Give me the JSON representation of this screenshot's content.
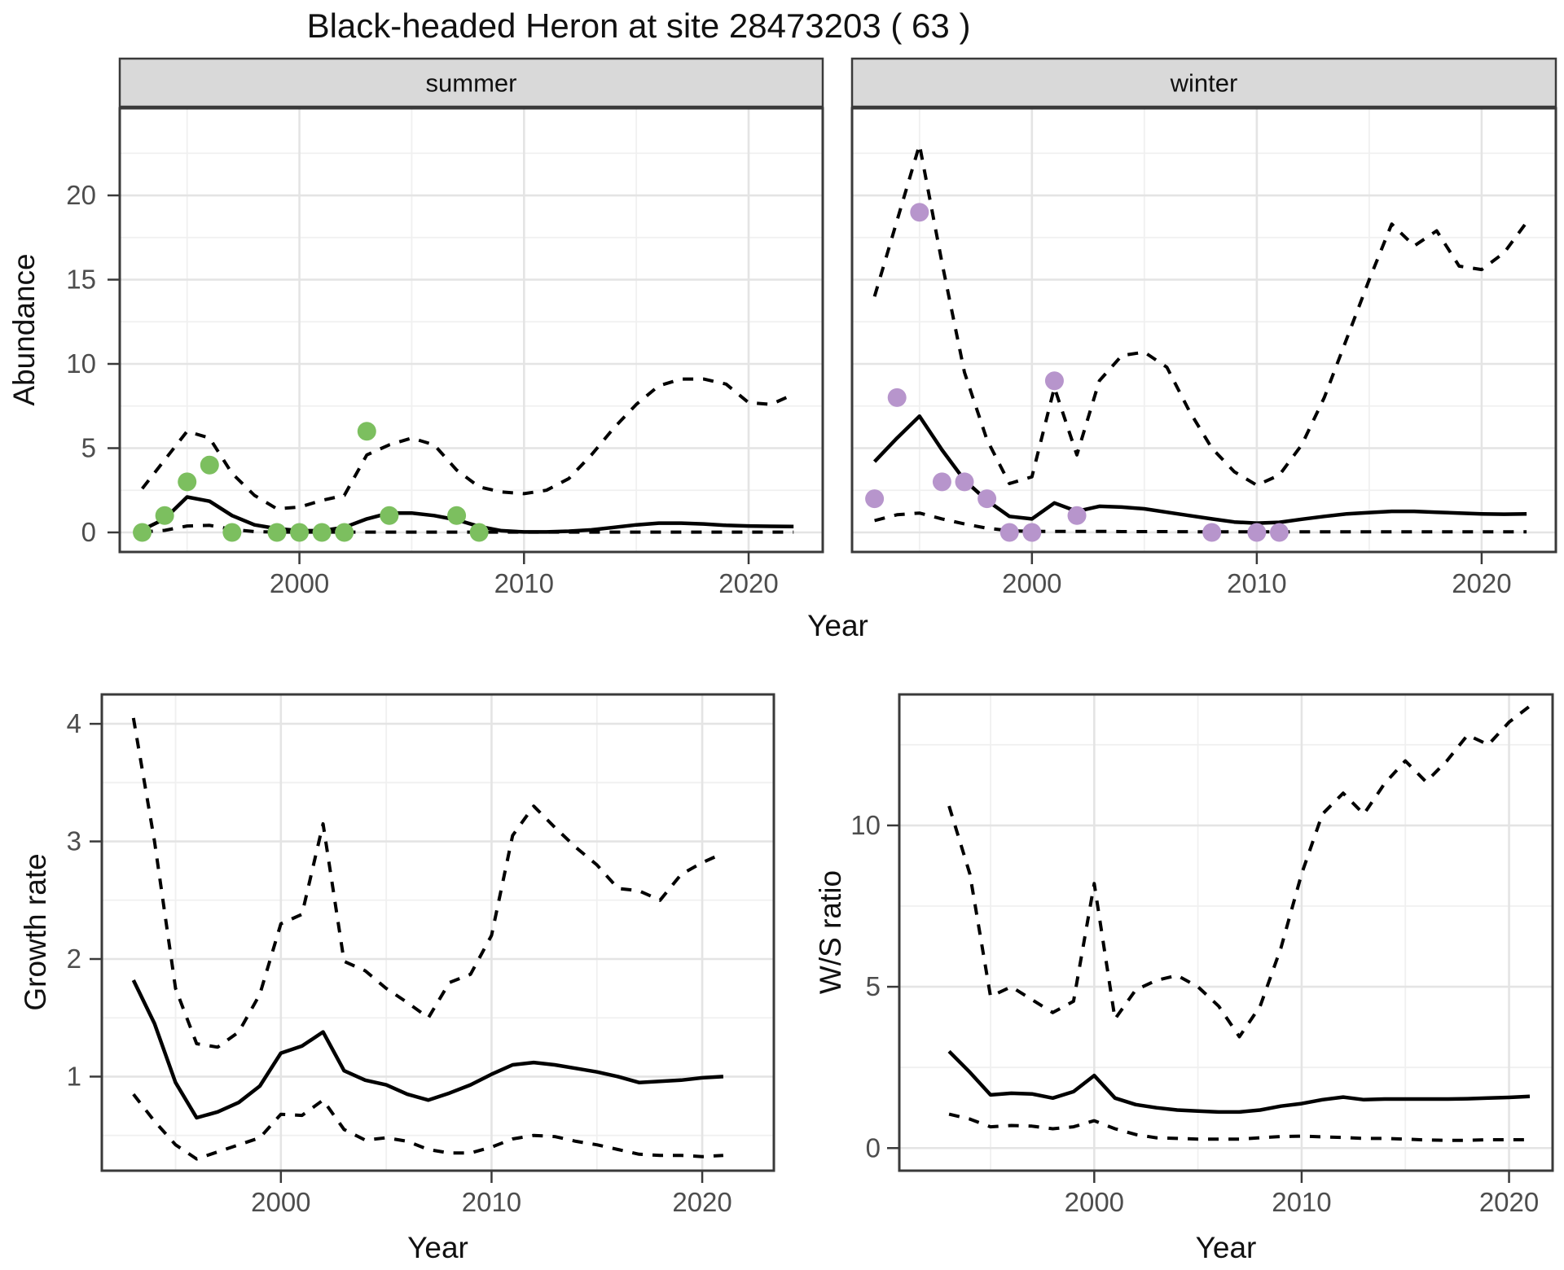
{
  "title": "Black-headed Heron at site 28473203 ( 63 )",
  "colors": {
    "line": "#000000",
    "summer_points": "#7cbf5f",
    "winter_points": "#b795cc",
    "strip_bg": "#d9d9d9",
    "grid_major": "#e4e4e4",
    "grid_minor": "#f0f0f0",
    "panel_border": "#3a3a3a",
    "text": "#111111",
    "tick_text": "#4d4d4d"
  },
  "chart_data": [
    {
      "type": "line",
      "title": "",
      "xlabel": "Year",
      "ylabel": "Abundance",
      "xlim": [
        1992.0,
        2023.3
      ],
      "ylim": [
        -1.16,
        25.17
      ],
      "x_ticks": [
        2000,
        2010,
        2020
      ],
      "x_minor_ticks": [
        1995,
        2005,
        2015
      ],
      "y_ticks": [
        0,
        5,
        10,
        15,
        20
      ],
      "y_minor_ticks": [
        2.5,
        7.5,
        12.5,
        17.5,
        22.5
      ],
      "grid": true,
      "legend": "none",
      "facets": [
        {
          "label": "summer",
          "point_color": "#7cbf5f",
          "points": {
            "x": [
              1993,
              1994,
              1995,
              1996,
              1997,
              1999,
              2000,
              2001,
              2002,
              2003,
              2004,
              2007,
              2008
            ],
            "y": [
              0,
              1,
              3,
              4,
              0,
              0,
              0,
              0,
              0,
              6,
              1,
              1,
              0
            ]
          },
          "series": [
            {
              "name": "mean",
              "style": "solid",
              "x0": 1993,
              "dx": 1,
              "y": [
                0.15,
                0.8,
                2.1,
                1.85,
                1.0,
                0.45,
                0.22,
                0.1,
                0.1,
                0.3,
                0.8,
                1.15,
                1.15,
                1.0,
                0.75,
                0.35,
                0.1,
                0.03,
                0.03,
                0.07,
                0.15,
                0.3,
                0.45,
                0.55,
                0.55,
                0.5,
                0.42,
                0.38,
                0.36,
                0.35
              ]
            },
            {
              "name": "upper-95ci",
              "style": "dashed",
              "x0": 1993,
              "dx": 1,
              "y": [
                2.6,
                4.3,
                6.0,
                5.6,
                3.5,
                2.2,
                1.4,
                1.5,
                1.9,
                2.2,
                4.6,
                5.2,
                5.6,
                5.2,
                3.7,
                2.7,
                2.4,
                2.3,
                2.5,
                3.2,
                4.6,
                6.2,
                7.6,
                8.7,
                9.1,
                9.1,
                8.8,
                7.7,
                7.6,
                8.2
              ]
            },
            {
              "name": "lower-95ci",
              "style": "dashed",
              "x0": 1993,
              "dx": 1,
              "y": [
                0.03,
                0.12,
                0.38,
                0.42,
                0.18,
                0.05,
                0.02,
                0.02,
                0.02,
                0.02,
                0.02,
                0.02,
                0.02,
                0.02,
                0.02,
                0.02,
                0.02,
                0.02,
                0.02,
                0.02,
                0.02,
                0.02,
                0.02,
                0.02,
                0.02,
                0.02,
                0.02,
                0.02,
                0.02,
                0.02
              ]
            }
          ]
        },
        {
          "label": "winter",
          "point_color": "#b795cc",
          "points": {
            "x": [
              1993,
              1994,
              1995,
              1996,
              1997,
              1998,
              1999,
              2000,
              2001,
              2002,
              2008,
              2010,
              2011
            ],
            "y": [
              2,
              8,
              19,
              3,
              3,
              2,
              0,
              0,
              9,
              1,
              0,
              0,
              0
            ]
          },
          "series": [
            {
              "name": "mean",
              "style": "solid",
              "x0": 1993,
              "dx": 1,
              "y": [
                4.2,
                5.6,
                6.9,
                4.9,
                3.1,
                1.9,
                0.95,
                0.8,
                1.75,
                1.25,
                1.55,
                1.5,
                1.4,
                1.2,
                1.0,
                0.8,
                0.62,
                0.55,
                0.6,
                0.78,
                0.95,
                1.1,
                1.18,
                1.25,
                1.25,
                1.2,
                1.15,
                1.1,
                1.08,
                1.1
              ]
            },
            {
              "name": "upper-95ci",
              "style": "dashed",
              "x0": 1993,
              "dx": 1,
              "y": [
                14.0,
                18.5,
                23.0,
                16.0,
                9.5,
                5.5,
                2.9,
                3.3,
                8.6,
                4.6,
                9.0,
                10.5,
                10.7,
                9.8,
                7.2,
                5.0,
                3.6,
                2.8,
                3.4,
                5.2,
                8.0,
                11.5,
                15.0,
                18.3,
                17.0,
                17.9,
                15.8,
                15.6,
                16.6,
                18.4
              ]
            },
            {
              "name": "lower-95ci",
              "style": "dashed",
              "x0": 1993,
              "dx": 1,
              "y": [
                0.7,
                1.05,
                1.15,
                0.8,
                0.5,
                0.25,
                0.1,
                0.06,
                0.06,
                0.06,
                0.06,
                0.05,
                0.05,
                0.05,
                0.04,
                0.04,
                0.04,
                0.04,
                0.04,
                0.04,
                0.04,
                0.04,
                0.04,
                0.04,
                0.04,
                0.04,
                0.04,
                0.04,
                0.04,
                0.04
              ]
            }
          ]
        }
      ]
    },
    {
      "type": "line",
      "title": "",
      "xlabel": "Year",
      "ylabel": "Growth rate",
      "xlim": [
        1991.5,
        2023.4
      ],
      "ylim": [
        0.2,
        4.25
      ],
      "x_ticks": [
        2000,
        2010,
        2020
      ],
      "x_minor_ticks": [
        1995,
        2005,
        2015
      ],
      "y_ticks": [
        1,
        2,
        3,
        4
      ],
      "y_minor_ticks": [
        0.5,
        1.5,
        2.5,
        3.5
      ],
      "grid": true,
      "legend": "none",
      "facets": [
        {
          "label": "",
          "point_color": null,
          "points": null,
          "series": [
            {
              "name": "mean",
              "style": "solid",
              "x0": 1993,
              "dx": 1,
              "y": [
                1.82,
                1.45,
                0.95,
                0.65,
                0.7,
                0.78,
                0.92,
                1.2,
                1.26,
                1.38,
                1.05,
                0.97,
                0.93,
                0.85,
                0.8,
                0.86,
                0.93,
                1.02,
                1.1,
                1.12,
                1.1,
                1.07,
                1.04,
                1.0,
                0.95,
                0.96,
                0.97,
                0.99,
                1.0
              ]
            },
            {
              "name": "upper-95ci",
              "style": "dashed",
              "x0": 1993,
              "dx": 1,
              "y": [
                4.05,
                3.0,
                1.75,
                1.28,
                1.25,
                1.38,
                1.7,
                2.3,
                2.38,
                3.15,
                1.98,
                1.9,
                1.75,
                1.63,
                1.5,
                1.8,
                1.87,
                2.2,
                3.05,
                3.3,
                3.12,
                2.95,
                2.8,
                2.6,
                2.58,
                2.5,
                2.72,
                2.82,
                2.9
              ]
            },
            {
              "name": "lower-95ci",
              "style": "dashed",
              "x0": 1993,
              "dx": 1,
              "y": [
                0.85,
                0.62,
                0.42,
                0.3,
                0.36,
                0.42,
                0.48,
                0.68,
                0.67,
                0.8,
                0.55,
                0.46,
                0.48,
                0.45,
                0.38,
                0.35,
                0.35,
                0.4,
                0.47,
                0.5,
                0.49,
                0.45,
                0.42,
                0.38,
                0.34,
                0.33,
                0.33,
                0.32,
                0.33
              ]
            }
          ]
        }
      ]
    },
    {
      "type": "line",
      "title": "",
      "xlabel": "Year",
      "ylabel": "W/S ratio",
      "xlim": [
        1990.6,
        2022.1
      ],
      "ylim": [
        -0.7,
        14.06
      ],
      "x_ticks": [
        2000,
        2010,
        2020
      ],
      "x_minor_ticks": [
        1995,
        2005,
        2015
      ],
      "y_ticks": [
        0,
        5,
        10
      ],
      "y_minor_ticks": [
        2.5,
        7.5,
        12.5
      ],
      "grid": true,
      "legend": "none",
      "facets": [
        {
          "label": "",
          "point_color": null,
          "points": null,
          "series": [
            {
              "name": "mean",
              "style": "solid",
              "x0": 1993,
              "dx": 1,
              "y": [
                3.0,
                2.35,
                1.65,
                1.7,
                1.68,
                1.55,
                1.75,
                2.25,
                1.55,
                1.35,
                1.25,
                1.18,
                1.15,
                1.12,
                1.12,
                1.18,
                1.3,
                1.38,
                1.5,
                1.58,
                1.5,
                1.52,
                1.52,
                1.52,
                1.52,
                1.53,
                1.55,
                1.57,
                1.6
              ]
            },
            {
              "name": "upper-95ci",
              "style": "dashed",
              "x0": 1993,
              "dx": 1,
              "y": [
                10.6,
                8.5,
                4.7,
                5.0,
                4.6,
                4.2,
                4.55,
                8.2,
                4.0,
                4.9,
                5.2,
                5.35,
                5.0,
                4.4,
                3.45,
                4.4,
                6.2,
                8.5,
                10.35,
                11.0,
                10.35,
                11.3,
                12.0,
                11.35,
                12.0,
                12.8,
                12.5,
                13.2,
                13.7
              ]
            },
            {
              "name": "lower-95ci",
              "style": "dashed",
              "x0": 1993,
              "dx": 1,
              "y": [
                1.05,
                0.9,
                0.66,
                0.7,
                0.68,
                0.6,
                0.66,
                0.85,
                0.6,
                0.42,
                0.32,
                0.3,
                0.28,
                0.28,
                0.28,
                0.32,
                0.36,
                0.37,
                0.35,
                0.33,
                0.3,
                0.3,
                0.28,
                0.25,
                0.24,
                0.24,
                0.26,
                0.26,
                0.26
              ]
            }
          ]
        }
      ]
    }
  ]
}
